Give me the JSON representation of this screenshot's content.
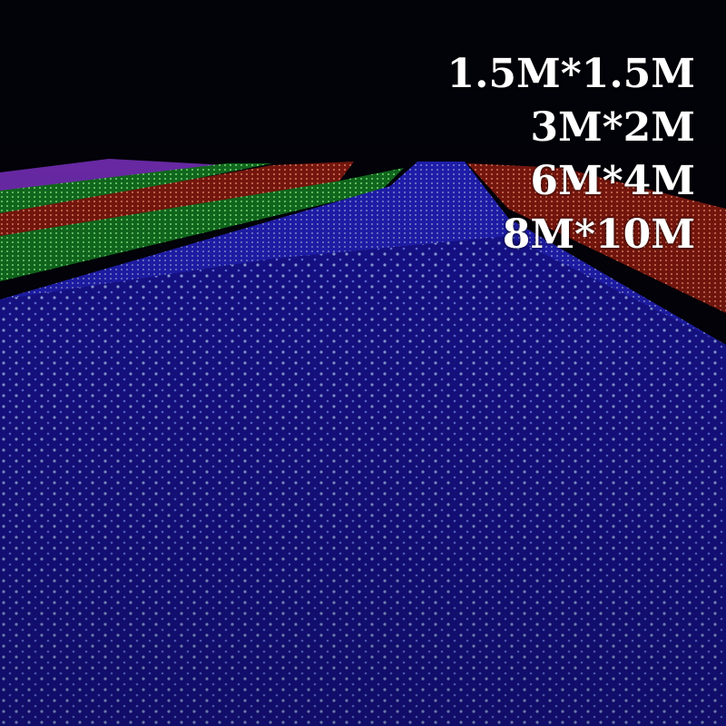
{
  "overlay": {
    "sizes": [
      "1.5M*1.5M",
      "3M*2M",
      "6M*4M",
      "8M*10M"
    ]
  },
  "colors": {
    "background": "#02020a",
    "blue_net": "#2a2ad8",
    "green_net": "#2fbf3a",
    "red_net": "#d8301c",
    "purple_net": "#8a3ad0",
    "text": "#ffffff"
  }
}
